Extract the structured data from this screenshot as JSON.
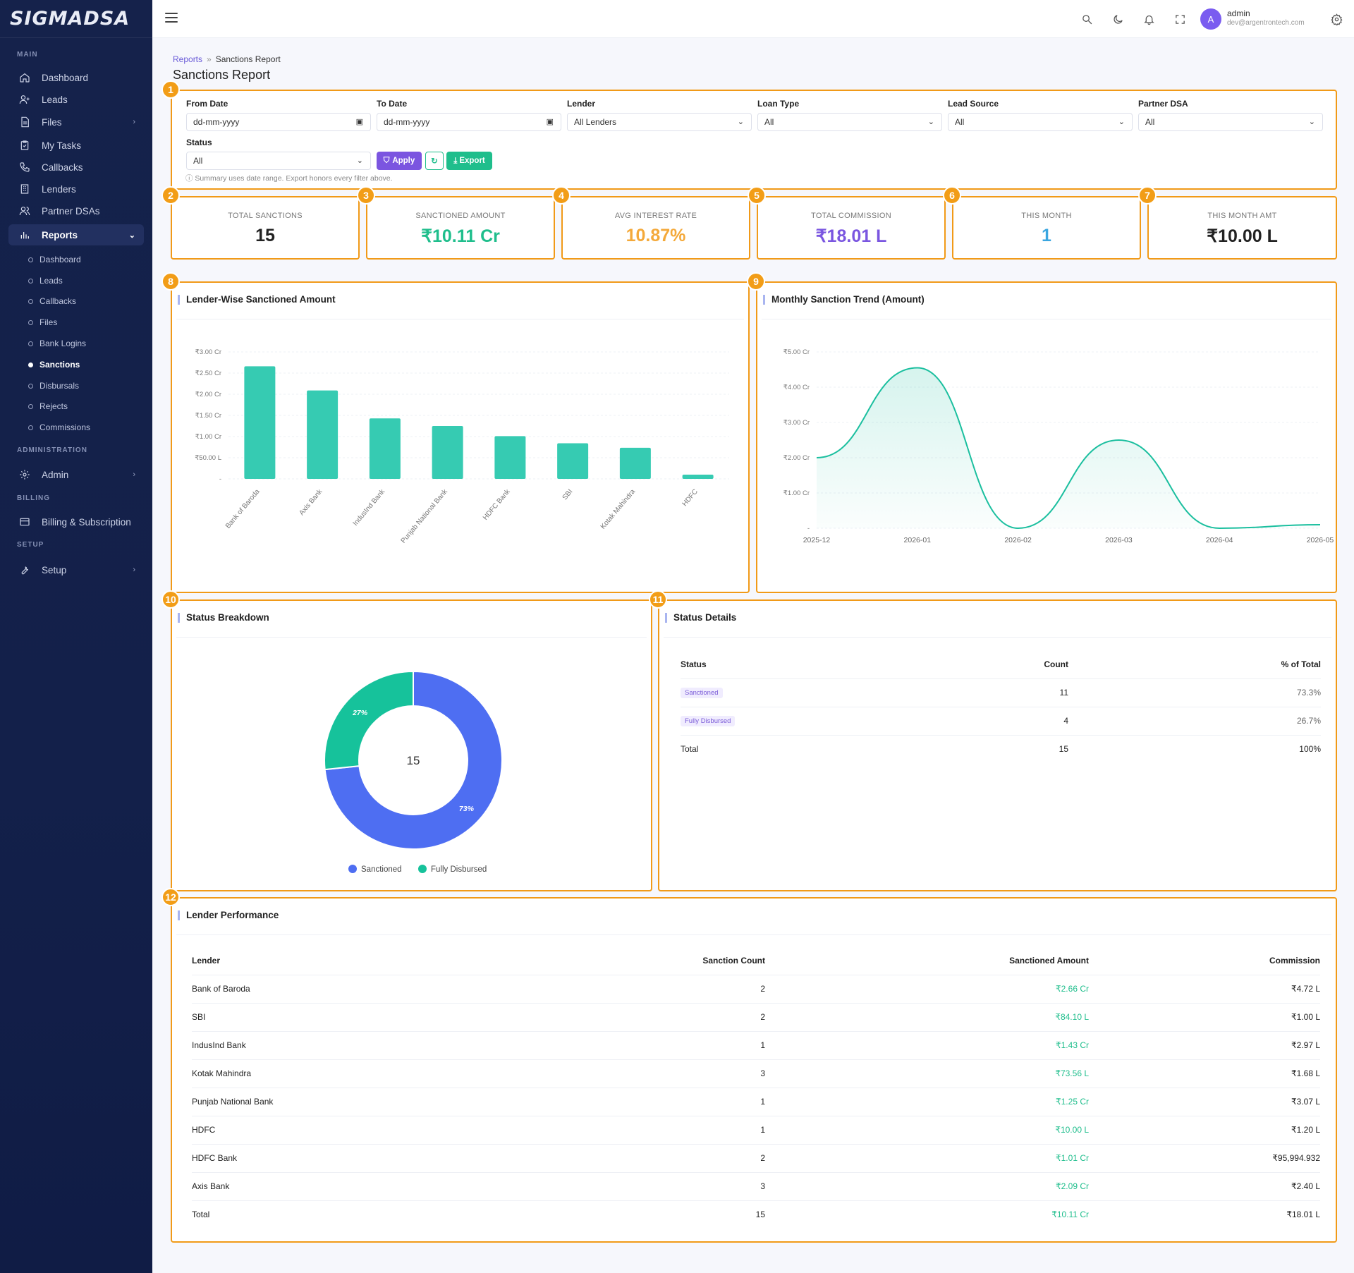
{
  "brand": {
    "logo": "SIGMADSA"
  },
  "sidebar": {
    "sections": {
      "main": "MAIN",
      "administration": "ADMINISTRATION",
      "billing": "BILLING",
      "setup": "SETUP"
    },
    "items": [
      {
        "label": "Dashboard",
        "icon": "home-icon"
      },
      {
        "label": "Leads",
        "icon": "user-plus-icon"
      },
      {
        "label": "Files",
        "icon": "file-icon"
      },
      {
        "label": "My Tasks",
        "icon": "clipboard-icon"
      },
      {
        "label": "Callbacks",
        "icon": "phone-icon"
      },
      {
        "label": "Lenders",
        "icon": "building-icon"
      },
      {
        "label": "Partner DSAs",
        "icon": "users-icon"
      },
      {
        "label": "Reports",
        "icon": "bar-chart-icon"
      }
    ],
    "report_subitems": [
      "Dashboard",
      "Leads",
      "Callbacks",
      "Files",
      "Bank Logins",
      "Sanctions",
      "Disbursals",
      "Rejects",
      "Commissions"
    ],
    "admin": "Admin",
    "billing_item": "Billing & Subscription",
    "setup_item": "Setup"
  },
  "topbar": {
    "user_name": "admin",
    "user_email": "dev@argentrontech.com",
    "avatar_letter": "A"
  },
  "breadcrumb": {
    "parent": "Reports",
    "sep": "»",
    "current": "Sanctions Report"
  },
  "page_title": "Sanctions Report",
  "annotation_badges": [
    "1",
    "2",
    "3",
    "4",
    "5",
    "6",
    "7",
    "8",
    "9",
    "10",
    "11",
    "12"
  ],
  "filters": {
    "from_date": {
      "label": "From Date",
      "value": "dd-mm-yyyy"
    },
    "to_date": {
      "label": "To Date",
      "value": "dd-mm-yyyy"
    },
    "lender": {
      "label": "Lender",
      "value": "All Lenders"
    },
    "loan_type": {
      "label": "Loan Type",
      "value": "All"
    },
    "lead_source": {
      "label": "Lead Source",
      "value": "All"
    },
    "partner_dsa": {
      "label": "Partner DSA",
      "value": "All"
    },
    "status": {
      "label": "Status",
      "value": "All"
    },
    "apply": "Apply",
    "export": "Export",
    "note": "ⓘ Summary uses date range. Export honors every filter above."
  },
  "kpis": [
    {
      "label": "TOTAL SANCTIONS",
      "value": "15",
      "color": "#222222"
    },
    {
      "label": "SANCTIONED AMOUNT",
      "value": "₹10.11 Cr",
      "color": "#1fbe8c"
    },
    {
      "label": "AVG INTEREST RATE",
      "value": "10.87%",
      "color": "#f4a93a"
    },
    {
      "label": "TOTAL COMMISSION",
      "value": "₹18.01 L",
      "color": "#7a56e0"
    },
    {
      "label": "THIS MONTH",
      "value": "1",
      "color": "#3aa6e0"
    },
    {
      "label": "THIS MONTH AMT",
      "value": "₹10.00 L",
      "color": "#222222"
    }
  ],
  "lender_chart": {
    "title": "Lender-Wise Sanctioned Amount"
  },
  "trend_chart": {
    "title": "Monthly Sanction Trend (Amount)"
  },
  "status_breakdown": {
    "title": "Status Breakdown",
    "center": "15",
    "legend": [
      "Sanctioned",
      "Fully Disbursed"
    ]
  },
  "status_details": {
    "title": "Status Details",
    "headers": [
      "Status",
      "Count",
      "% of Total"
    ],
    "rows": [
      {
        "status": "Sanctioned",
        "count": "11",
        "pct": "73.3%"
      },
      {
        "status": "Fully Disbursed",
        "count": "4",
        "pct": "26.7%"
      }
    ],
    "total": {
      "label": "Total",
      "count": "15",
      "pct": "100%"
    }
  },
  "lender_performance": {
    "title": "Lender Performance",
    "headers": [
      "Lender",
      "Sanction Count",
      "Sanctioned Amount",
      "Commission"
    ],
    "rows": [
      {
        "lender": "Bank of Baroda",
        "count": "2",
        "amount": "₹2.66 Cr",
        "commission": "₹4.72 L"
      },
      {
        "lender": "SBI",
        "count": "2",
        "amount": "₹84.10 L",
        "commission": "₹1.00 L"
      },
      {
        "lender": "IndusInd Bank",
        "count": "1",
        "amount": "₹1.43 Cr",
        "commission": "₹2.97 L"
      },
      {
        "lender": "Kotak Mahindra",
        "count": "3",
        "amount": "₹73.56 L",
        "commission": "₹1.68 L"
      },
      {
        "lender": "Punjab National Bank",
        "count": "1",
        "amount": "₹1.25 Cr",
        "commission": "₹3.07 L"
      },
      {
        "lender": "HDFC",
        "count": "1",
        "amount": "₹10.00 L",
        "commission": "₹1.20 L"
      },
      {
        "lender": "HDFC Bank",
        "count": "2",
        "amount": "₹1.01 Cr",
        "commission": "₹95,994.932"
      },
      {
        "lender": "Axis Bank",
        "count": "3",
        "amount": "₹2.09 Cr",
        "commission": "₹2.40 L"
      }
    ],
    "total": {
      "label": "Total",
      "count": "15",
      "amount": "₹10.11 Cr",
      "commission": "₹18.01 L"
    }
  },
  "chart_data": [
    {
      "type": "bar",
      "categories": [
        "Bank of Baroda",
        "Axis Bank",
        "IndusInd Bank",
        "Punjab National Bank",
        "HDFC Bank",
        "SBI",
        "Kotak Mahindra",
        "HDFC"
      ],
      "values": [
        2.66,
        2.09,
        1.43,
        1.25,
        1.01,
        0.841,
        0.7356,
        0.1
      ],
      "value_unit": "Cr",
      "y_tick_labels": [
        "₹3.00 Cr",
        "₹2.50 Cr",
        "₹2.00 Cr",
        "₹1.50 Cr",
        "₹1.00 Cr",
        "₹50.00 L",
        "-"
      ],
      "ylim": [
        0,
        3
      ],
      "color": "#36cbb2",
      "grid": true
    },
    {
      "type": "area",
      "x": [
        "2025-12",
        "2026-01",
        "2026-02",
        "2026-03",
        "2026-04",
        "2026-05"
      ],
      "values": [
        2.0,
        4.55,
        0.0,
        2.5,
        0.0,
        0.1
      ],
      "value_unit": "Cr",
      "y_tick_labels": [
        "₹5.00 Cr",
        "₹4.00 Cr",
        "₹3.00 Cr",
        "₹2.00 Cr",
        "₹1.00 Cr",
        "-"
      ],
      "ylim": [
        0,
        5
      ],
      "color": "#1bbf9f",
      "grid": true
    },
    {
      "type": "pie",
      "categories": [
        "Sanctioned",
        "Fully Disbursed"
      ],
      "values": [
        11,
        4
      ],
      "labels": [
        "73%",
        "27%"
      ],
      "colors": [
        "#4e6ef2",
        "#16c29b"
      ],
      "legend": "bottom"
    }
  ]
}
